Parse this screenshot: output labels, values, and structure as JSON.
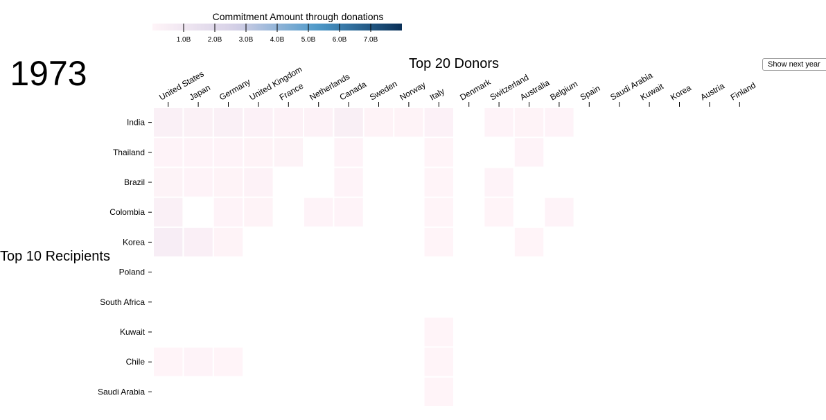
{
  "year": "1973",
  "next_button_label": "Show next year",
  "chart_data": {
    "type": "heatmap",
    "title": "Top 20 Donors",
    "x_title": "Top 20 Donors",
    "y_title": "Top 10 Recipients",
    "value_unit": "USD",
    "donors": [
      "United States",
      "Japan",
      "Germany",
      "United Kingdom",
      "France",
      "Netherlands",
      "Canada",
      "Sweden",
      "Norway",
      "Italy",
      "Denmark",
      "Switzerland",
      "Australia",
      "Belgium",
      "Spain",
      "Saudi Arabia",
      "Kuwait",
      "Korea",
      "Austria",
      "Finland"
    ],
    "recipients": [
      "India",
      "Thailand",
      "Brazil",
      "Colombia",
      "Korea",
      "Poland",
      "South Africa",
      "Kuwait",
      "Chile",
      "Saudi Arabia"
    ],
    "values": [
      [
        300000000,
        250000000,
        300000000,
        200000000,
        120000000,
        130000000,
        400000000,
        80000000,
        80000000,
        200000000,
        null,
        50000000,
        80000000,
        50000000,
        null,
        null,
        null,
        null,
        null,
        null
      ],
      [
        50000000,
        60000000,
        50000000,
        80000000,
        100000000,
        null,
        60000000,
        null,
        null,
        30000000,
        null,
        null,
        40000000,
        null,
        null,
        null,
        null,
        null,
        null,
        null
      ],
      [
        100000000,
        50000000,
        80000000,
        150000000,
        null,
        null,
        50000000,
        null,
        null,
        30000000,
        null,
        40000000,
        null,
        null,
        null,
        null,
        null,
        null,
        null,
        null
      ],
      [
        300000000,
        null,
        60000000,
        80000000,
        null,
        40000000,
        50000000,
        null,
        null,
        30000000,
        null,
        30000000,
        null,
        40000000,
        null,
        null,
        null,
        null,
        null,
        null
      ],
      [
        500000000,
        350000000,
        80000000,
        null,
        null,
        null,
        null,
        null,
        null,
        20000000,
        null,
        null,
        20000000,
        null,
        null,
        null,
        null,
        null,
        null,
        null
      ],
      [
        null,
        null,
        null,
        null,
        null,
        null,
        null,
        null,
        null,
        null,
        null,
        null,
        null,
        null,
        null,
        null,
        null,
        null,
        null,
        null
      ],
      [
        null,
        null,
        null,
        null,
        null,
        null,
        null,
        null,
        null,
        null,
        null,
        null,
        null,
        null,
        null,
        null,
        null,
        null,
        null,
        null
      ],
      [
        null,
        null,
        null,
        null,
        null,
        null,
        null,
        null,
        null,
        15000000,
        null,
        null,
        null,
        null,
        null,
        null,
        null,
        null,
        null,
        null
      ],
      [
        30000000,
        50000000,
        30000000,
        null,
        null,
        null,
        null,
        null,
        null,
        15000000,
        null,
        null,
        null,
        null,
        null,
        null,
        null,
        null,
        null,
        null
      ],
      [
        null,
        null,
        null,
        null,
        null,
        null,
        null,
        null,
        null,
        15000000,
        null,
        null,
        null,
        null,
        null,
        null,
        null,
        null,
        null,
        null
      ]
    ],
    "legend": {
      "title": "Commitment Amount through donations",
      "domain": [
        0,
        8000000000
      ],
      "ticks": [
        1000000000,
        2000000000,
        3000000000,
        4000000000,
        5000000000,
        6000000000,
        7000000000
      ],
      "tick_labels": [
        "1.0B",
        "2.0B",
        "3.0B",
        "4.0B",
        "5.0B",
        "6.0B",
        "7.0B"
      ],
      "colors": [
        "#fff4f8",
        "#d6d0e6",
        "#4b98c9",
        "#0a3058"
      ]
    },
    "grid": false
  }
}
